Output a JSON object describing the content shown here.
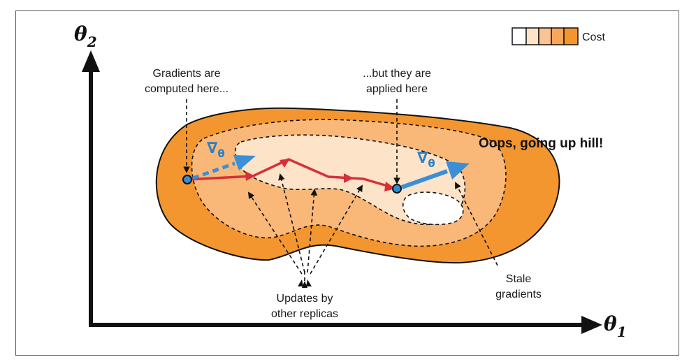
{
  "axes": {
    "y_symbol": "θ",
    "y_subscript": "2",
    "x_symbol": "θ",
    "x_subscript": "1"
  },
  "legend": {
    "label": "Cost",
    "swatch_colors": [
      "#ffffff",
      "#fde3c8",
      "#fbc493",
      "#f8a65a",
      "#f4962f"
    ]
  },
  "annotations": {
    "computed_line1": "Gradients are",
    "computed_line2": "computed here...",
    "applied_line1": "...but they are",
    "applied_line2": "applied here",
    "oops": "Oops, going up hill!",
    "updates_line1": "Updates by",
    "updates_line2": "other replicas",
    "stale_line1": "Stale",
    "stale_line2": "gradients"
  },
  "gradient_symbol": {
    "nabla": "∇",
    "subscript": "θ"
  },
  "colors": {
    "cost_high": "#f4962f",
    "cost_mid": "#f9b878",
    "cost_low": "#fde3c8",
    "cost_min": "#ffffff",
    "path_red": "#d62f3a",
    "gradient_blue": "#3b8fd6",
    "point_fill": "#2f8fd3"
  }
}
